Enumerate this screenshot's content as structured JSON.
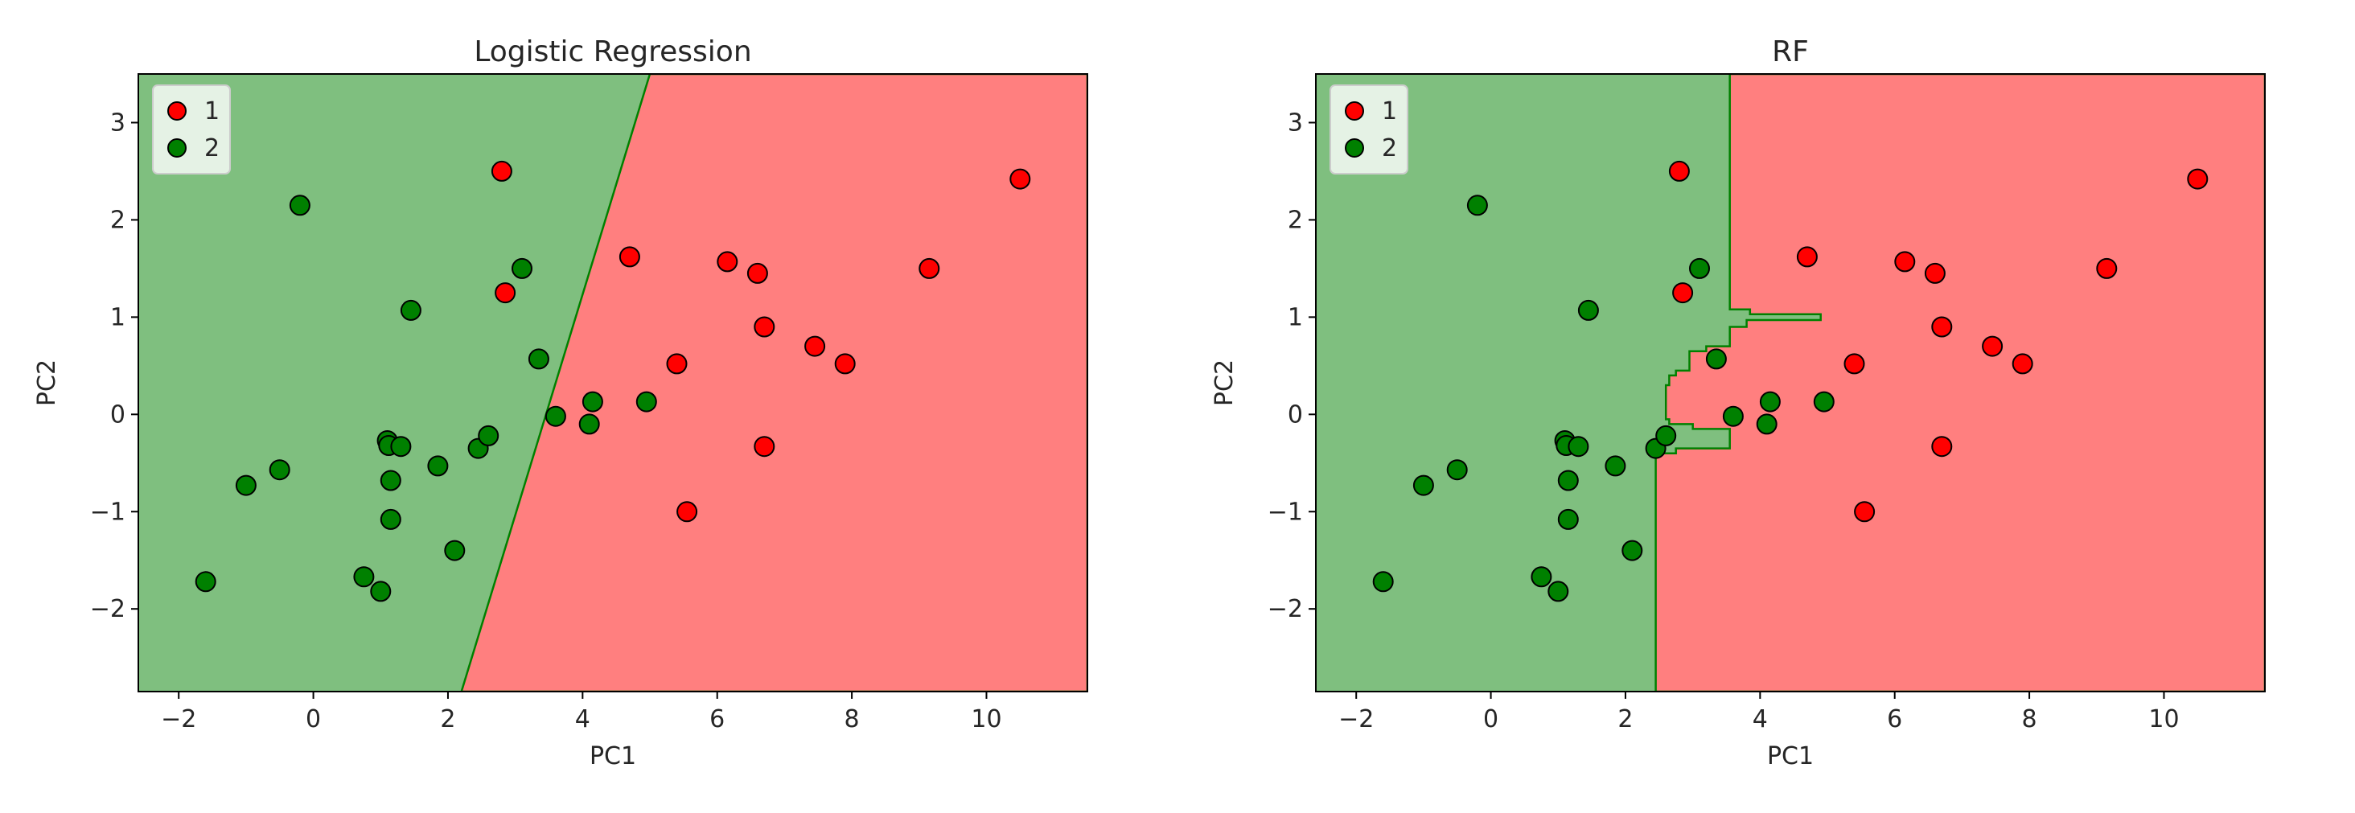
{
  "colors": {
    "class1_region": "#ff7f7f",
    "class2_region": "#7fbf7f",
    "class1_point": "#ff0000",
    "class2_point": "#008000",
    "boundary": "#008000",
    "point_edge": "#000000"
  },
  "chart_data": [
    {
      "type": "scatter",
      "title": "Logistic Regression",
      "xlabel": "PC1",
      "ylabel": "PC2",
      "xlim": [
        -2.6,
        11.5
      ],
      "ylim": [
        -2.85,
        3.5
      ],
      "xticks": [
        -2,
        0,
        2,
        4,
        6,
        8,
        10
      ],
      "yticks": [
        -2,
        -1,
        0,
        1,
        2,
        3
      ],
      "legend": {
        "position": "upper-left",
        "entries": [
          "1",
          "2"
        ]
      },
      "decision_boundary": {
        "kind": "line",
        "points": [
          [
            2.2,
            -2.85
          ],
          [
            5.0,
            3.5
          ]
        ],
        "left_class": "2",
        "right_class": "1"
      },
      "series": [
        {
          "name": "1",
          "points": [
            [
              2.8,
              2.5
            ],
            [
              2.85,
              1.25
            ],
            [
              4.7,
              1.62
            ],
            [
              5.4,
              0.52
            ],
            [
              5.55,
              -1.0
            ],
            [
              6.15,
              1.57
            ],
            [
              6.6,
              1.45
            ],
            [
              6.7,
              0.9
            ],
            [
              6.7,
              -0.33
            ],
            [
              7.45,
              0.7
            ],
            [
              7.9,
              0.52
            ],
            [
              9.15,
              1.5
            ],
            [
              10.5,
              2.42
            ]
          ]
        },
        {
          "name": "2",
          "points": [
            [
              -1.6,
              -1.72
            ],
            [
              -1.0,
              -0.73
            ],
            [
              -0.5,
              -0.57
            ],
            [
              -0.2,
              2.15
            ],
            [
              0.75,
              -1.67
            ],
            [
              1.0,
              -1.82
            ],
            [
              1.1,
              -0.27
            ],
            [
              1.12,
              -0.32
            ],
            [
              1.15,
              -0.68
            ],
            [
              1.15,
              -1.08
            ],
            [
              1.3,
              -0.33
            ],
            [
              1.45,
              1.07
            ],
            [
              1.85,
              -0.53
            ],
            [
              2.1,
              -1.4
            ],
            [
              2.45,
              -0.35
            ],
            [
              2.6,
              -0.22
            ],
            [
              3.1,
              1.5
            ],
            [
              3.35,
              0.57
            ],
            [
              3.6,
              -0.02
            ],
            [
              4.1,
              -0.1
            ],
            [
              4.15,
              0.13
            ],
            [
              4.95,
              0.13
            ]
          ]
        }
      ]
    },
    {
      "type": "scatter",
      "title": "RF",
      "xlabel": "PC1",
      "ylabel": "PC2",
      "xlim": [
        -2.6,
        11.5
      ],
      "ylim": [
        -2.85,
        3.5
      ],
      "xticks": [
        -2,
        0,
        2,
        4,
        6,
        8,
        10
      ],
      "yticks": [
        -2,
        -1,
        0,
        1,
        2,
        3
      ],
      "legend": {
        "position": "upper-left",
        "entries": [
          "1",
          "2"
        ]
      },
      "decision_boundary": {
        "kind": "polygon",
        "class1_region": [
          [
            3.55,
            3.5
          ],
          [
            3.55,
            1.08
          ],
          [
            3.85,
            1.08
          ],
          [
            3.85,
            1.03
          ],
          [
            4.9,
            1.03
          ],
          [
            4.9,
            0.97
          ],
          [
            3.8,
            0.97
          ],
          [
            3.8,
            0.9
          ],
          [
            3.55,
            0.9
          ],
          [
            3.55,
            0.7
          ],
          [
            3.2,
            0.7
          ],
          [
            3.2,
            0.65
          ],
          [
            2.95,
            0.65
          ],
          [
            2.95,
            0.45
          ],
          [
            2.75,
            0.45
          ],
          [
            2.75,
            0.4
          ],
          [
            2.65,
            0.4
          ],
          [
            2.65,
            0.3
          ],
          [
            2.6,
            0.3
          ],
          [
            2.6,
            -0.05
          ],
          [
            2.65,
            -0.05
          ],
          [
            2.65,
            -0.1
          ],
          [
            3.0,
            -0.1
          ],
          [
            3.0,
            -0.15
          ],
          [
            3.55,
            -0.15
          ],
          [
            3.55,
            -0.35
          ],
          [
            2.75,
            -0.35
          ],
          [
            2.75,
            -0.4
          ],
          [
            2.45,
            -0.4
          ],
          [
            2.45,
            -2.85
          ],
          [
            11.5,
            -2.85
          ],
          [
            11.5,
            3.5
          ]
        ],
        "left_class": "2",
        "right_class": "1"
      },
      "series": [
        {
          "name": "1",
          "points": [
            [
              2.8,
              2.5
            ],
            [
              2.85,
              1.25
            ],
            [
              4.7,
              1.62
            ],
            [
              5.4,
              0.52
            ],
            [
              5.55,
              -1.0
            ],
            [
              6.15,
              1.57
            ],
            [
              6.6,
              1.45
            ],
            [
              6.7,
              0.9
            ],
            [
              6.7,
              -0.33
            ],
            [
              7.45,
              0.7
            ],
            [
              7.9,
              0.52
            ],
            [
              9.15,
              1.5
            ],
            [
              10.5,
              2.42
            ]
          ]
        },
        {
          "name": "2",
          "points": [
            [
              -1.6,
              -1.72
            ],
            [
              -1.0,
              -0.73
            ],
            [
              -0.5,
              -0.57
            ],
            [
              -0.2,
              2.15
            ],
            [
              0.75,
              -1.67
            ],
            [
              1.0,
              -1.82
            ],
            [
              1.1,
              -0.27
            ],
            [
              1.12,
              -0.32
            ],
            [
              1.15,
              -0.68
            ],
            [
              1.15,
              -1.08
            ],
            [
              1.3,
              -0.33
            ],
            [
              1.45,
              1.07
            ],
            [
              1.85,
              -0.53
            ],
            [
              2.1,
              -1.4
            ],
            [
              2.45,
              -0.35
            ],
            [
              2.6,
              -0.22
            ],
            [
              3.1,
              1.5
            ],
            [
              3.35,
              0.57
            ],
            [
              3.6,
              -0.02
            ],
            [
              4.1,
              -0.1
            ],
            [
              4.15,
              0.13
            ],
            [
              4.95,
              0.13
            ]
          ]
        }
      ]
    }
  ]
}
